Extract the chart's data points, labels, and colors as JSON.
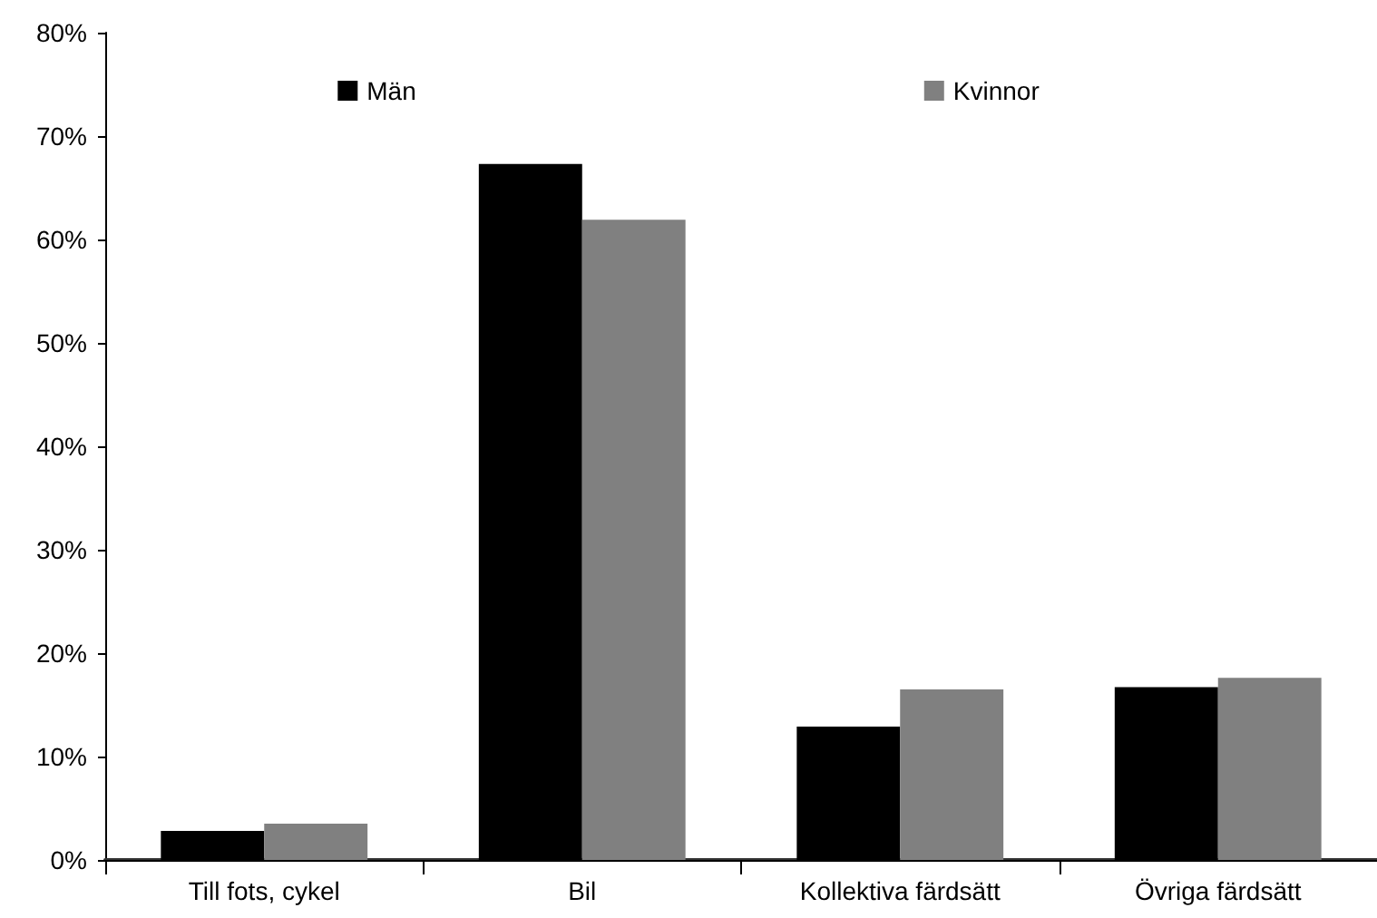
{
  "chart_data": {
    "type": "bar",
    "categories": [
      "Till fots, cykel",
      "Bil",
      "Kollektiva färdsätt",
      "Övriga färdsätt"
    ],
    "series": [
      {
        "name": "Män",
        "color": "#000000",
        "values": [
          2.8,
          67.3,
          12.9,
          16.7
        ]
      },
      {
        "name": "Kvinnor",
        "color": "#808080",
        "values": [
          3.5,
          61.9,
          16.5,
          17.6
        ]
      }
    ],
    "ylim": [
      0,
      80
    ],
    "yticks": [
      {
        "value": 0,
        "label": "0%"
      },
      {
        "value": 10,
        "label": "10%"
      },
      {
        "value": 20,
        "label": "20%"
      },
      {
        "value": 30,
        "label": "30%"
      },
      {
        "value": 40,
        "label": "40%"
      },
      {
        "value": 50,
        "label": "50%"
      },
      {
        "value": 60,
        "label": "60%"
      },
      {
        "value": 70,
        "label": "70%"
      },
      {
        "value": 80,
        "label": "80%"
      }
    ],
    "grid": false,
    "legend": "top"
  }
}
